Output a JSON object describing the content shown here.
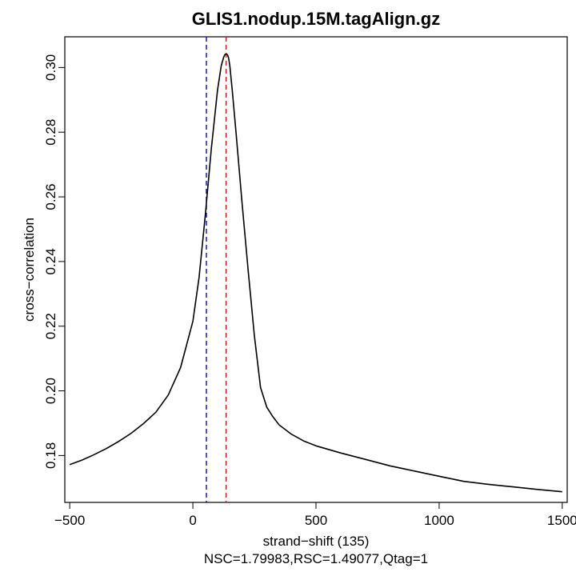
{
  "chart_data": {
    "type": "line",
    "title": "GLIS1.nodup.15M.tagAlign.gz",
    "xlabel": "strand−shift (135)",
    "subtitle": "NSC=1.79983,RSC=1.49077,Qtag=1",
    "ylabel": "cross−correlation",
    "xlim": [
      -520,
      1520
    ],
    "ylim": [
      0.1655,
      0.3095
    ],
    "xticks": [
      -500,
      0,
      500,
      1000,
      1500
    ],
    "xtick_labels": [
      "−500",
      "0",
      "500",
      "1000",
      "1500"
    ],
    "yticks": [
      0.18,
      0.2,
      0.22,
      0.24,
      0.26,
      0.28,
      0.3
    ],
    "ytick_labels": [
      "0.18",
      "0.20",
      "0.22",
      "0.24",
      "0.26",
      "0.28",
      "0.30"
    ],
    "grid": false,
    "vlines": [
      {
        "x": 55,
        "color": "#0000ff",
        "style": "dashed"
      },
      {
        "x": 135,
        "color": "#ff0000",
        "style": "dashed"
      }
    ],
    "series": [
      {
        "color": "#000000",
        "x": [
          -500,
          -450,
          -400,
          -350,
          -300,
          -250,
          -200,
          -150,
          -100,
          -50,
          0,
          25,
          50,
          75,
          100,
          115,
          125,
          130,
          135,
          140,
          145,
          150,
          160,
          175,
          200,
          225,
          250,
          275,
          300,
          325,
          350,
          400,
          450,
          500,
          600,
          700,
          800,
          900,
          1000,
          1100,
          1200,
          1300,
          1400,
          1500
        ],
        "y": [
          0.1772,
          0.1786,
          0.1803,
          0.1822,
          0.1844,
          0.1869,
          0.1899,
          0.1934,
          0.1987,
          0.2072,
          0.2215,
          0.235,
          0.254,
          0.275,
          0.293,
          0.3005,
          0.3032,
          0.304,
          0.3042,
          0.304,
          0.303,
          0.3005,
          0.293,
          0.28,
          0.258,
          0.237,
          0.217,
          0.201,
          0.195,
          0.192,
          0.1895,
          0.1866,
          0.1845,
          0.183,
          0.1808,
          0.1788,
          0.1768,
          0.1752,
          0.1736,
          0.172,
          0.1711,
          0.1703,
          0.1695,
          0.1688
        ]
      }
    ]
  }
}
